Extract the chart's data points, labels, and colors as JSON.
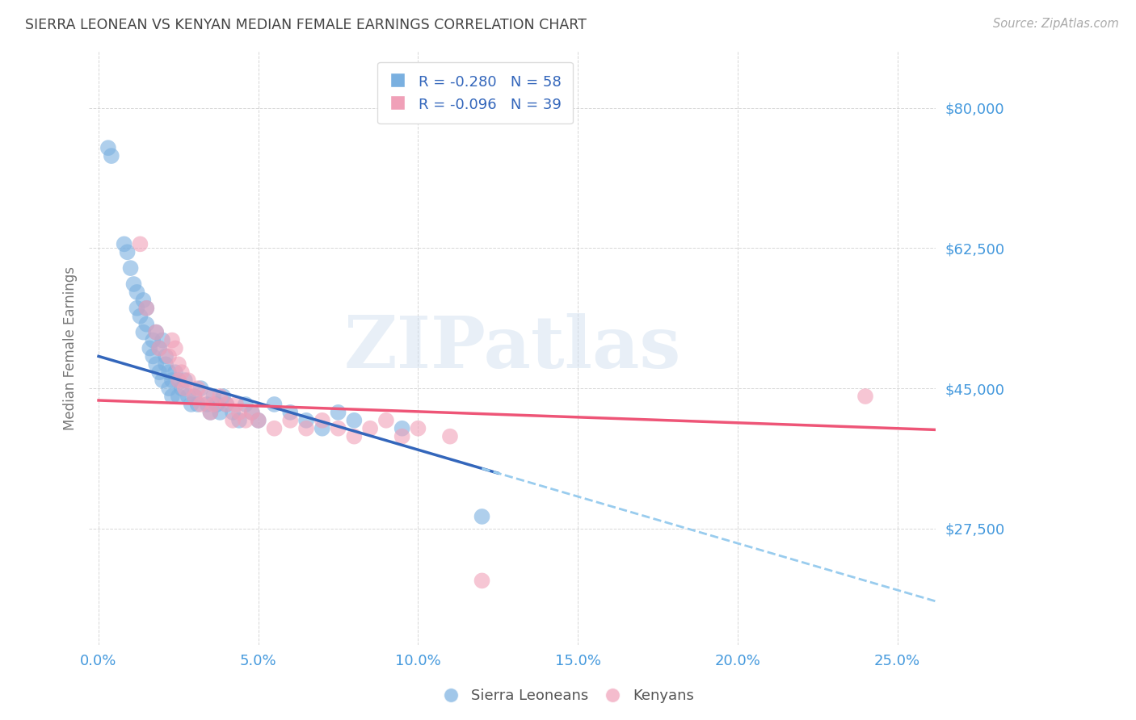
{
  "title": "SIERRA LEONEAN VS KENYAN MEDIAN FEMALE EARNINGS CORRELATION CHART",
  "source": "Source: ZipAtlas.com",
  "ylabel": "Median Female Earnings",
  "xlabel_ticks": [
    "0.0%",
    "5.0%",
    "10.0%",
    "15.0%",
    "20.0%",
    "25.0%"
  ],
  "xlabel_vals": [
    0.0,
    0.05,
    0.1,
    0.15,
    0.2,
    0.25
  ],
  "ytick_labels": [
    "$80,000",
    "$62,500",
    "$45,000",
    "$27,500"
  ],
  "ytick_vals": [
    80000,
    62500,
    45000,
    27500
  ],
  "ylim": [
    13000,
    87000
  ],
  "xlim": [
    -0.003,
    0.262
  ],
  "legend_entries": [
    {
      "label": "R = -0.280   N = 58",
      "color": "#7ab0e0"
    },
    {
      "label": "R = -0.096   N = 39",
      "color": "#f0a0b8"
    }
  ],
  "legend_labels": [
    "Sierra Leoneans",
    "Kenyans"
  ],
  "blue_color": "#7ab0e0",
  "pink_color": "#f0a0b8",
  "blue_line_color": "#3366bb",
  "pink_line_color": "#ee5577",
  "dashed_color": "#99ccee",
  "watermark": "ZIPatlas",
  "background_color": "#ffffff",
  "grid_color": "#cccccc",
  "axis_label_color": "#4499dd",
  "title_color": "#444444",
  "blue_x": [
    0.003,
    0.004,
    0.008,
    0.009,
    0.01,
    0.011,
    0.012,
    0.012,
    0.013,
    0.014,
    0.014,
    0.015,
    0.015,
    0.016,
    0.017,
    0.017,
    0.018,
    0.018,
    0.019,
    0.019,
    0.02,
    0.02,
    0.021,
    0.021,
    0.022,
    0.022,
    0.023,
    0.023,
    0.024,
    0.025,
    0.025,
    0.026,
    0.027,
    0.028,
    0.029,
    0.03,
    0.031,
    0.032,
    0.034,
    0.035,
    0.036,
    0.037,
    0.038,
    0.039,
    0.04,
    0.042,
    0.044,
    0.046,
    0.048,
    0.05,
    0.055,
    0.06,
    0.065,
    0.07,
    0.075,
    0.08,
    0.095,
    0.12
  ],
  "blue_y": [
    75000,
    74000,
    63000,
    62000,
    60000,
    58000,
    57000,
    55000,
    54000,
    56000,
    52000,
    53000,
    55000,
    50000,
    51000,
    49000,
    52000,
    48000,
    50000,
    47000,
    51000,
    46000,
    49000,
    48000,
    47000,
    45000,
    46000,
    44000,
    47000,
    46000,
    44000,
    45000,
    46000,
    44000,
    43000,
    44000,
    43000,
    45000,
    43000,
    42000,
    44000,
    43000,
    42000,
    44000,
    43000,
    42000,
    41000,
    43000,
    42000,
    41000,
    43000,
    42000,
    41000,
    40000,
    42000,
    41000,
    40000,
    29000
  ],
  "pink_x": [
    0.013,
    0.015,
    0.018,
    0.019,
    0.022,
    0.023,
    0.024,
    0.025,
    0.025,
    0.026,
    0.027,
    0.028,
    0.03,
    0.031,
    0.032,
    0.034,
    0.035,
    0.036,
    0.038,
    0.04,
    0.042,
    0.043,
    0.044,
    0.046,
    0.048,
    0.05,
    0.055,
    0.06,
    0.065,
    0.07,
    0.075,
    0.08,
    0.085,
    0.09,
    0.095,
    0.1,
    0.11,
    0.24,
    0.12
  ],
  "pink_y": [
    63000,
    55000,
    52000,
    50000,
    49000,
    51000,
    50000,
    48000,
    46000,
    47000,
    45000,
    46000,
    44000,
    45000,
    43000,
    44000,
    42000,
    43000,
    44000,
    43000,
    41000,
    43000,
    42000,
    41000,
    42000,
    41000,
    40000,
    41000,
    40000,
    41000,
    40000,
    39000,
    40000,
    41000,
    39000,
    40000,
    39000,
    44000,
    21000
  ]
}
